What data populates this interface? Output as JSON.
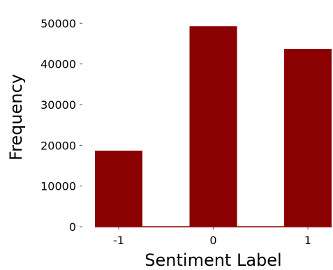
{
  "chart_data": {
    "type": "bar",
    "title": "",
    "xlabel": "Sentiment Label",
    "ylabel": "Frequency",
    "categories": [
      "-1",
      "0",
      "1"
    ],
    "values": [
      18700,
      49300,
      43700
    ],
    "ylim": [
      0,
      54000
    ],
    "yticks": [
      0,
      10000,
      20000,
      30000,
      40000,
      50000
    ],
    "ytick_labels": [
      "0",
      "10000",
      "20000",
      "30000",
      "40000",
      "50000"
    ],
    "bar_color": "#8b0000",
    "grid": false,
    "legend": "none"
  }
}
